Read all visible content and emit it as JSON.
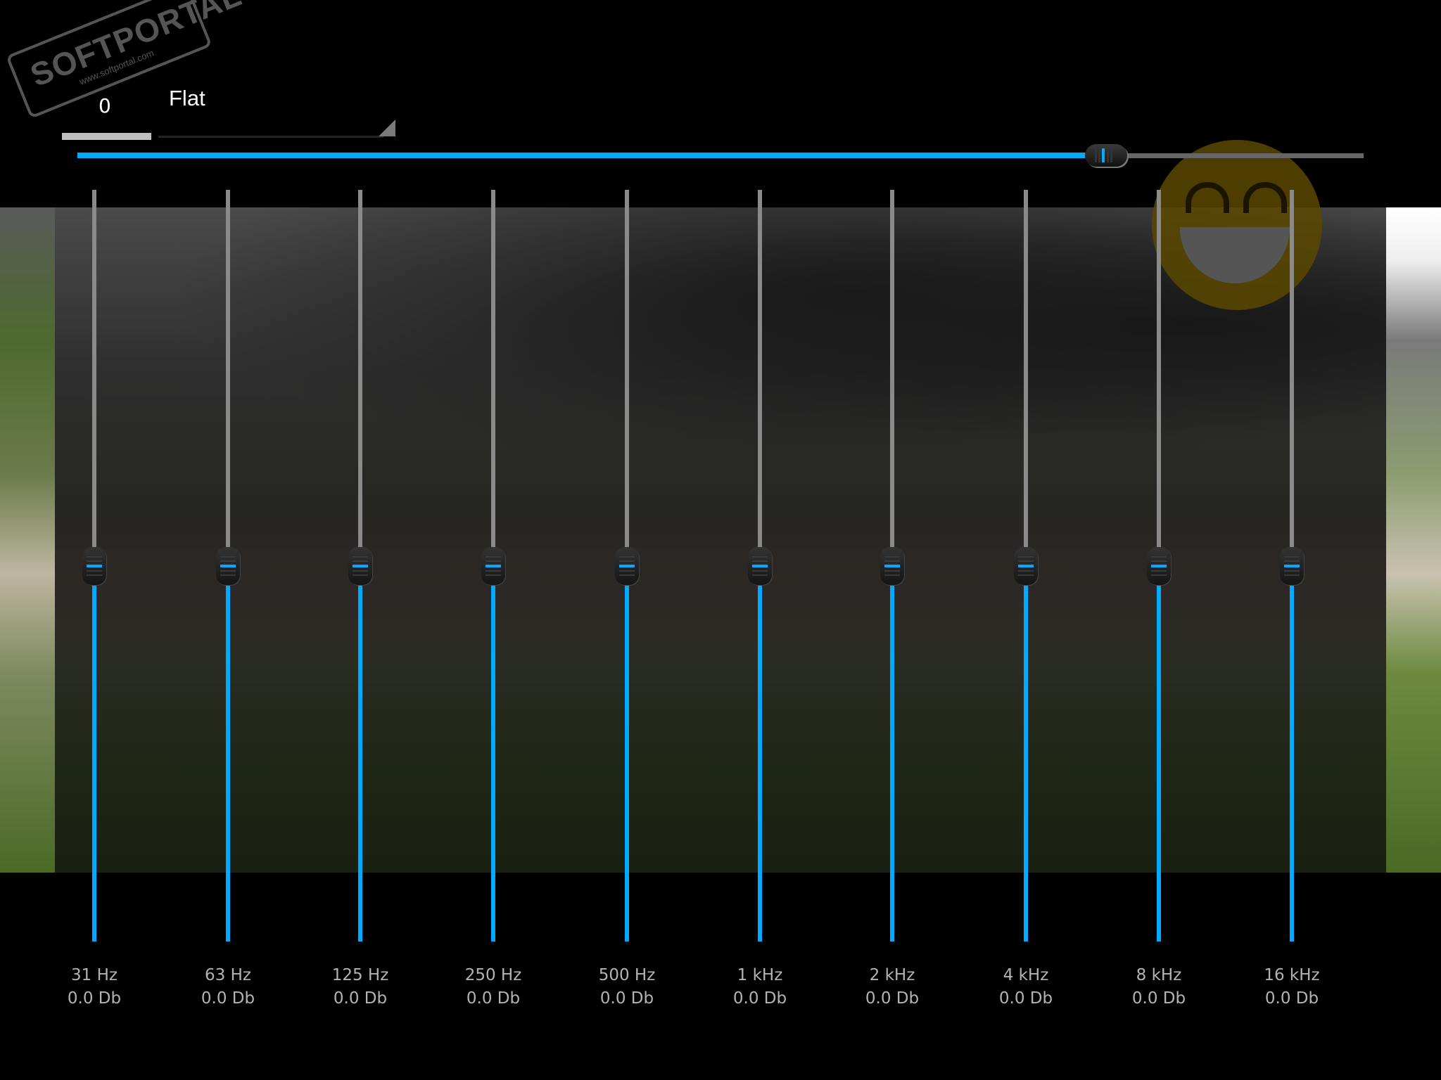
{
  "watermark": {
    "brand": "SOFTPORTAL",
    "url": "www.softportal.com"
  },
  "preset": {
    "value": "0",
    "name": "Flat"
  },
  "master_slider": {
    "position": 0.8,
    "accent_color": "#00aaff"
  },
  "overlay": {
    "icon": "grinning-smiley-icon",
    "color": "#5a4800"
  },
  "bands": [
    {
      "freq": "31 Hz",
      "gain": "0.0 Db",
      "level": 0.5
    },
    {
      "freq": "63 Hz",
      "gain": "0.0 Db",
      "level": 0.5
    },
    {
      "freq": "125 Hz",
      "gain": "0.0 Db",
      "level": 0.5
    },
    {
      "freq": "250 Hz",
      "gain": "0.0 Db",
      "level": 0.5
    },
    {
      "freq": "500 Hz",
      "gain": "0.0 Db",
      "level": 0.5
    },
    {
      "freq": "1 kHz",
      "gain": "0.0 Db",
      "level": 0.5
    },
    {
      "freq": "2 kHz",
      "gain": "0.0 Db",
      "level": 0.5
    },
    {
      "freq": "4 kHz",
      "gain": "0.0 Db",
      "level": 0.5
    },
    {
      "freq": "8 kHz",
      "gain": "0.0 Db",
      "level": 0.5
    },
    {
      "freq": "16 kHz",
      "gain": "0.0 Db",
      "level": 0.5
    }
  ]
}
